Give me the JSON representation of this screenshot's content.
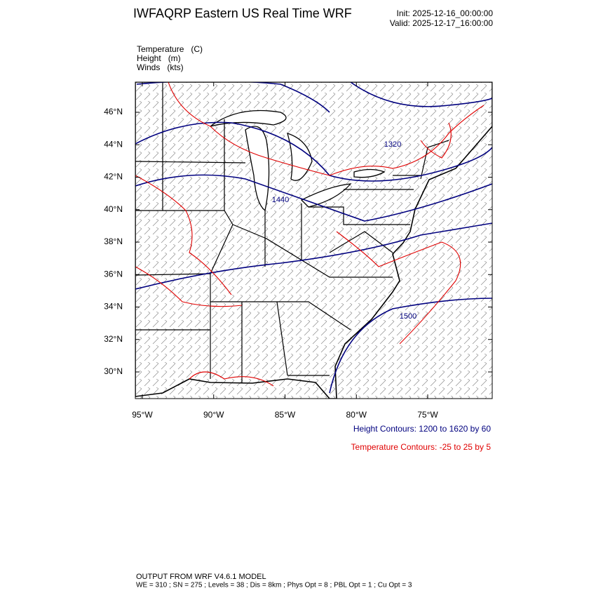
{
  "header": {
    "title": "IWFAQRP Eastern US Real Time WRF",
    "init": "Init: 2025-12-16_00:00:00",
    "valid": "Valid: 2025-12-17_16:00:00"
  },
  "fields": [
    "Temperature   (C)",
    "Height   (m)",
    "Winds   (kts)"
  ],
  "map": {
    "lat_ticks": [
      {
        "value": 46,
        "label": "46°N"
      },
      {
        "value": 44,
        "label": "44°N"
      },
      {
        "value": 42,
        "label": "42°N"
      },
      {
        "value": 40,
        "label": "40°N"
      },
      {
        "value": 38,
        "label": "38°N"
      },
      {
        "value": 36,
        "label": "36°N"
      },
      {
        "value": 34,
        "label": "34°N"
      },
      {
        "value": 32,
        "label": "32°N"
      },
      {
        "value": 30,
        "label": "30°N"
      }
    ],
    "lon_ticks": [
      {
        "value": -95,
        "label": "95°W"
      },
      {
        "value": -90,
        "label": "90°W"
      },
      {
        "value": -85,
        "label": "85°W"
      },
      {
        "value": -80,
        "label": "80°W"
      },
      {
        "value": -75,
        "label": "75°W"
      }
    ],
    "contour_labels": [
      "1320",
      "1440",
      "1500"
    ]
  },
  "legend": {
    "height": "Height Contours: 1200 to 1620 by 60",
    "temperature": "Temperature Contours: -25 to 25 by 5"
  },
  "footer": {
    "line1": "OUTPUT FROM WRF V4.6.1 MODEL",
    "line2": "WE = 310 ; SN = 275 ; Levels = 38 ; Dis = 8km ; Phys Opt = 8 ; PBL Opt = 1 ; Cu Opt = 3"
  }
}
